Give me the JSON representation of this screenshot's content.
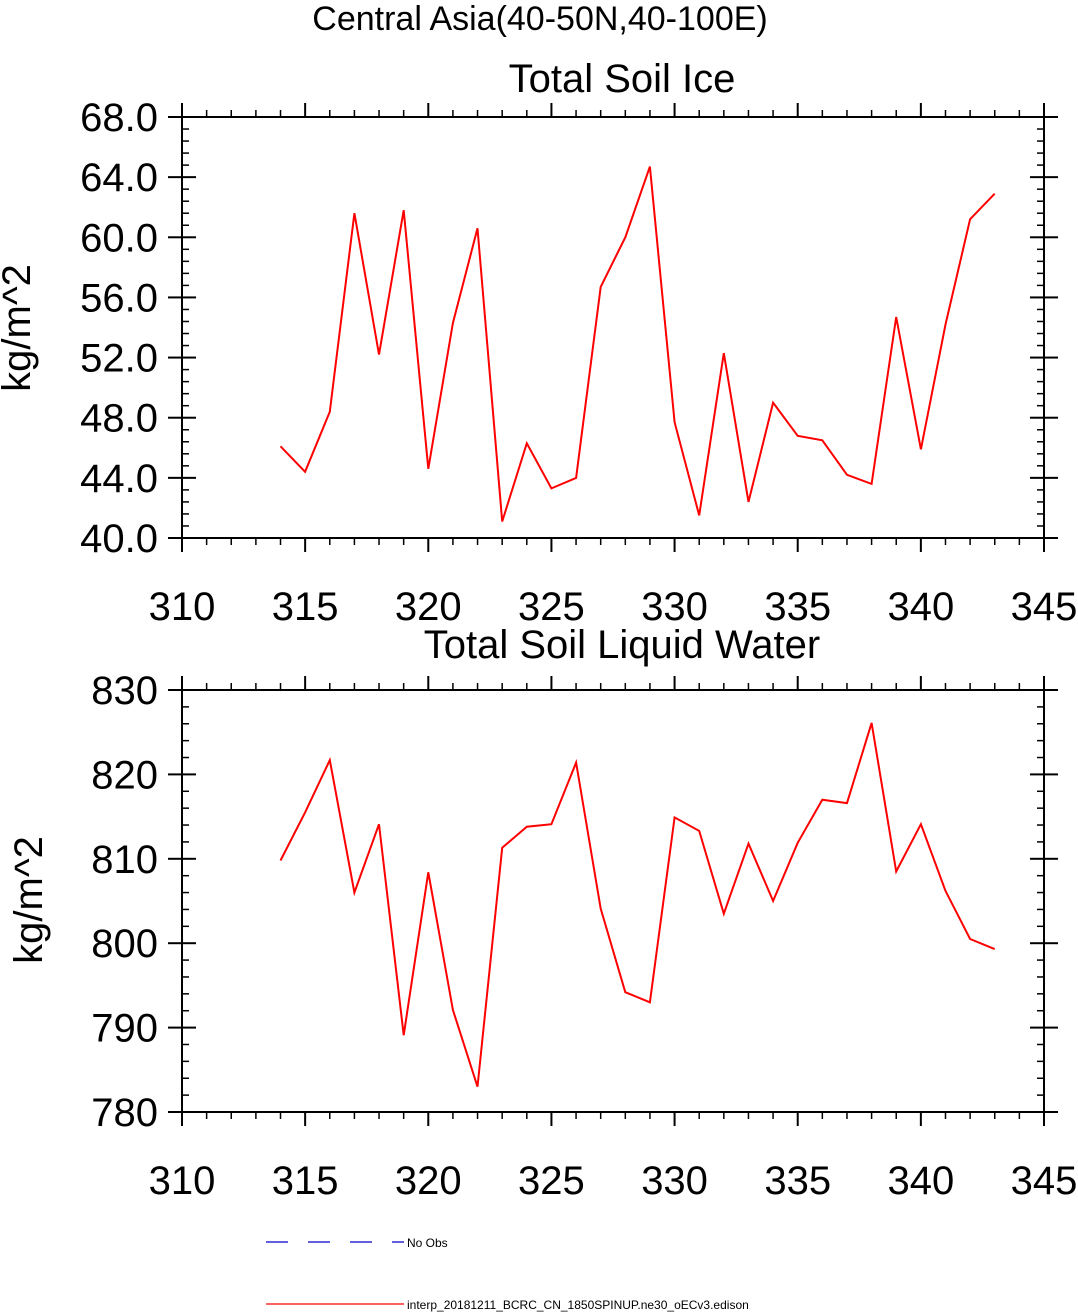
{
  "figure_title": "Central Asia(40-50N,40-100E)",
  "chart_data": [
    {
      "type": "line",
      "title": "Total Soil Ice",
      "xlabel": "",
      "ylabel": "kg/m^2",
      "xlim": [
        310,
        345
      ],
      "ylim": [
        40,
        68
      ],
      "xticks": [
        "310",
        "315",
        "320",
        "325",
        "330",
        "335",
        "340",
        "345"
      ],
      "yticks": [
        "40.0",
        "44.0",
        "48.0",
        "52.0",
        "56.0",
        "60.0",
        "64.0",
        "68.0"
      ],
      "x": [
        314,
        315,
        316,
        317,
        318,
        319,
        320,
        321,
        322,
        323,
        324,
        325,
        326,
        327,
        328,
        329,
        330,
        331,
        332,
        333,
        334,
        335,
        336,
        337,
        338,
        339,
        340,
        341,
        342,
        343
      ],
      "series": [
        {
          "name": "interp_20181211_BCRC_CN_1850SPINUP.ne30_oECv3.edison",
          "color": "#ff0000",
          "values": [
            46.1,
            44.4,
            48.4,
            61.6,
            52.2,
            61.8,
            44.6,
            54.3,
            60.6,
            41.1,
            46.3,
            43.3,
            44.0,
            56.7,
            60.0,
            64.7,
            47.7,
            41.5,
            52.3,
            42.4,
            49.0,
            46.8,
            46.5,
            44.2,
            43.6,
            54.7,
            45.9,
            54.2,
            61.2,
            62.9
          ]
        }
      ]
    },
    {
      "type": "line",
      "title": "Total Soil Liquid Water",
      "xlabel": "",
      "ylabel": "kg/m^2",
      "xlim": [
        310,
        345
      ],
      "ylim": [
        780,
        830
      ],
      "xticks": [
        "310",
        "315",
        "320",
        "325",
        "330",
        "335",
        "340",
        "345"
      ],
      "yticks": [
        "780",
        "790",
        "800",
        "810",
        "820",
        "830"
      ],
      "x": [
        314,
        315,
        316,
        317,
        318,
        319,
        320,
        321,
        322,
        323,
        324,
        325,
        326,
        327,
        328,
        329,
        330,
        331,
        332,
        333,
        334,
        335,
        336,
        337,
        338,
        339,
        340,
        341,
        342,
        343
      ],
      "series": [
        {
          "name": "interp_20181211_BCRC_CN_1850SPINUP.ne30_oECv3.edison",
          "color": "#ff0000",
          "values": [
            809.8,
            815.5,
            821.7,
            806.0,
            814.1,
            789.1,
            808.4,
            792.1,
            783.0,
            811.3,
            813.8,
            814.1,
            821.4,
            804.1,
            794.2,
            793.0,
            814.9,
            813.3,
            803.5,
            811.8,
            805.0,
            811.9,
            817.0,
            816.6,
            826.1,
            808.5,
            814.1,
            806.2,
            800.5,
            799.3
          ]
        }
      ]
    }
  ],
  "legend": {
    "placement": "bottom",
    "items": [
      {
        "label": "No Obs",
        "color": "#0000cc",
        "dash": "dashed"
      },
      {
        "label": "interp_20181211_BCRC_CN_1850SPINUP.ne30_oECv3.edison",
        "color": "#ff0000",
        "dash": "solid"
      }
    ]
  }
}
